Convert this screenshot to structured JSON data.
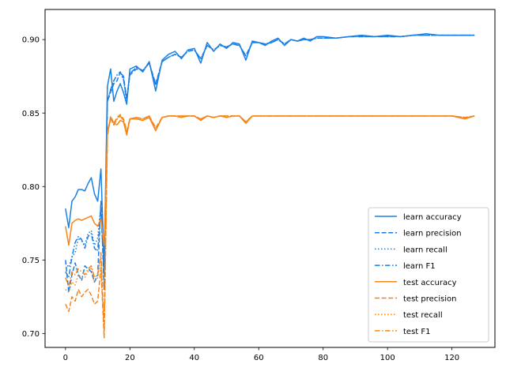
{
  "chart_data": {
    "type": "line",
    "title": "",
    "xlabel": "",
    "ylabel": "",
    "xlim": [
      -6.35,
      133.35
    ],
    "ylim": [
      0.6905,
      0.9205
    ],
    "grid": false,
    "legend_position": "lower-right",
    "xticks": [
      0,
      20,
      40,
      60,
      80,
      100,
      120
    ],
    "yticks": [
      0.7,
      0.75,
      0.8,
      0.85,
      0.9
    ],
    "ytick_labels": [
      "0.70",
      "0.75",
      "0.80",
      "0.85",
      "0.90"
    ],
    "colors": {
      "learn": "#1f77b4",
      "test": "#ff7f0e",
      "learn_bright": "#1a80e6",
      "test_bright": "#f5861a"
    },
    "x_anchors": [
      0,
      1,
      2,
      3,
      4,
      5,
      6,
      7,
      8,
      9,
      10,
      11,
      12,
      13,
      14,
      15,
      16,
      17,
      18,
      19,
      20,
      22,
      24,
      26,
      28,
      30,
      32,
      34,
      36,
      38,
      40,
      42,
      44,
      46,
      48,
      50,
      52,
      54,
      56,
      58,
      60,
      62,
      64,
      66,
      68,
      70,
      72,
      74,
      76,
      78,
      80,
      84,
      88,
      92,
      96,
      100,
      104,
      108,
      112,
      116,
      120,
      124,
      127
    ],
    "series": [
      {
        "name": "learn accuracy",
        "color": "#1a80e6",
        "dash": "solid",
        "values": [
          0.785,
          0.772,
          0.79,
          0.793,
          0.798,
          0.798,
          0.797,
          0.802,
          0.806,
          0.795,
          0.79,
          0.812,
          0.745,
          0.868,
          0.88,
          0.858,
          0.865,
          0.87,
          0.864,
          0.856,
          0.88,
          0.882,
          0.878,
          0.885,
          0.865,
          0.886,
          0.89,
          0.892,
          0.887,
          0.893,
          0.894,
          0.884,
          0.898,
          0.892,
          0.897,
          0.894,
          0.898,
          0.897,
          0.886,
          0.899,
          0.898,
          0.896,
          0.899,
          0.901,
          0.896,
          0.9,
          0.899,
          0.901,
          0.899,
          0.902,
          0.902,
          0.901,
          0.902,
          0.903,
          0.902,
          0.903,
          0.902,
          0.903,
          0.904,
          0.903,
          0.903,
          0.903,
          0.903
        ]
      },
      {
        "name": "learn precision",
        "color": "#1a80e6",
        "dash": "dashed",
        "values": [
          0.75,
          0.728,
          0.74,
          0.748,
          0.74,
          0.736,
          0.746,
          0.744,
          0.742,
          0.735,
          0.74,
          0.79,
          0.73,
          0.858,
          0.864,
          0.87,
          0.872,
          0.878,
          0.875,
          0.86,
          0.876,
          0.88,
          0.879,
          0.884,
          0.87,
          0.885,
          0.888,
          0.89,
          0.888,
          0.892,
          0.893,
          0.887,
          0.896,
          0.893,
          0.896,
          0.895,
          0.897,
          0.896,
          0.889,
          0.898,
          0.898,
          0.897,
          0.898,
          0.9,
          0.897,
          0.9,
          0.899,
          0.9,
          0.9,
          0.901,
          0.901,
          0.901,
          0.902,
          0.902,
          0.902,
          0.902,
          0.902,
          0.903,
          0.903,
          0.903,
          0.903,
          0.903,
          0.903
        ]
      },
      {
        "name": "learn recall",
        "color": "#1a80e6",
        "dash": "dotted",
        "values": [
          0.748,
          0.745,
          0.752,
          0.755,
          0.765,
          0.763,
          0.76,
          0.768,
          0.77,
          0.76,
          0.765,
          0.788,
          0.74,
          0.858,
          0.866,
          0.872,
          0.876,
          0.878,
          0.873,
          0.858,
          0.877,
          0.881,
          0.879,
          0.884,
          0.869,
          0.885,
          0.888,
          0.89,
          0.888,
          0.892,
          0.893,
          0.887,
          0.896,
          0.893,
          0.896,
          0.895,
          0.897,
          0.896,
          0.889,
          0.898,
          0.898,
          0.897,
          0.898,
          0.9,
          0.897,
          0.9,
          0.899,
          0.9,
          0.9,
          0.901,
          0.901,
          0.901,
          0.902,
          0.902,
          0.902,
          0.902,
          0.902,
          0.903,
          0.903,
          0.903,
          0.903,
          0.903,
          0.903
        ]
      },
      {
        "name": "learn F1",
        "color": "#1a80e6",
        "dash": "dashdot",
        "values": [
          0.742,
          0.738,
          0.752,
          0.762,
          0.766,
          0.764,
          0.758,
          0.766,
          0.768,
          0.758,
          0.756,
          0.786,
          0.738,
          0.858,
          0.866,
          0.872,
          0.876,
          0.878,
          0.873,
          0.858,
          0.877,
          0.881,
          0.879,
          0.884,
          0.869,
          0.885,
          0.888,
          0.89,
          0.888,
          0.892,
          0.893,
          0.887,
          0.896,
          0.893,
          0.896,
          0.895,
          0.897,
          0.896,
          0.889,
          0.898,
          0.898,
          0.897,
          0.898,
          0.9,
          0.897,
          0.9,
          0.899,
          0.9,
          0.9,
          0.901,
          0.901,
          0.901,
          0.902,
          0.902,
          0.902,
          0.902,
          0.902,
          0.903,
          0.903,
          0.903,
          0.903,
          0.903,
          0.903
        ]
      },
      {
        "name": "test accuracy",
        "color": "#f5861a",
        "dash": "solid",
        "values": [
          0.773,
          0.76,
          0.775,
          0.777,
          0.778,
          0.777,
          0.778,
          0.779,
          0.78,
          0.775,
          0.773,
          0.778,
          0.76,
          0.838,
          0.846,
          0.843,
          0.842,
          0.845,
          0.844,
          0.835,
          0.846,
          0.846,
          0.845,
          0.847,
          0.838,
          0.847,
          0.848,
          0.848,
          0.847,
          0.848,
          0.848,
          0.845,
          0.848,
          0.847,
          0.848,
          0.847,
          0.848,
          0.848,
          0.843,
          0.848,
          0.848,
          0.848,
          0.848,
          0.848,
          0.848,
          0.848,
          0.848,
          0.848,
          0.848,
          0.848,
          0.848,
          0.848,
          0.848,
          0.848,
          0.848,
          0.848,
          0.848,
          0.848,
          0.848,
          0.848,
          0.848,
          0.846,
          0.848
        ]
      },
      {
        "name": "test precision",
        "color": "#f5861a",
        "dash": "dashed",
        "values": [
          0.72,
          0.715,
          0.725,
          0.722,
          0.73,
          0.725,
          0.728,
          0.73,
          0.726,
          0.72,
          0.722,
          0.745,
          0.697,
          0.834,
          0.848,
          0.843,
          0.847,
          0.849,
          0.846,
          0.838,
          0.846,
          0.847,
          0.846,
          0.848,
          0.84,
          0.847,
          0.848,
          0.848,
          0.848,
          0.848,
          0.848,
          0.846,
          0.848,
          0.847,
          0.848,
          0.848,
          0.848,
          0.848,
          0.844,
          0.848,
          0.848,
          0.848,
          0.848,
          0.848,
          0.848,
          0.848,
          0.848,
          0.848,
          0.848,
          0.848,
          0.848,
          0.848,
          0.848,
          0.848,
          0.848,
          0.848,
          0.848,
          0.848,
          0.848,
          0.848,
          0.848,
          0.847,
          0.848
        ]
      },
      {
        "name": "test recall",
        "color": "#f5861a",
        "dash": "dotted",
        "values": [
          0.73,
          0.728,
          0.735,
          0.733,
          0.74,
          0.738,
          0.738,
          0.742,
          0.745,
          0.735,
          0.738,
          0.752,
          0.7,
          0.836,
          0.846,
          0.842,
          0.846,
          0.848,
          0.845,
          0.836,
          0.846,
          0.847,
          0.846,
          0.848,
          0.839,
          0.847,
          0.848,
          0.848,
          0.848,
          0.848,
          0.848,
          0.846,
          0.848,
          0.847,
          0.848,
          0.848,
          0.848,
          0.848,
          0.844,
          0.848,
          0.848,
          0.848,
          0.848,
          0.848,
          0.848,
          0.848,
          0.848,
          0.848,
          0.848,
          0.848,
          0.848,
          0.848,
          0.848,
          0.848,
          0.848,
          0.848,
          0.848,
          0.848,
          0.848,
          0.848,
          0.848,
          0.847,
          0.848
        ]
      },
      {
        "name": "test F1",
        "color": "#f5861a",
        "dash": "dashdot",
        "values": [
          0.738,
          0.732,
          0.742,
          0.74,
          0.744,
          0.742,
          0.74,
          0.744,
          0.746,
          0.738,
          0.74,
          0.755,
          0.702,
          0.836,
          0.846,
          0.842,
          0.846,
          0.848,
          0.845,
          0.836,
          0.846,
          0.847,
          0.846,
          0.848,
          0.839,
          0.847,
          0.848,
          0.848,
          0.848,
          0.848,
          0.848,
          0.846,
          0.848,
          0.847,
          0.848,
          0.848,
          0.848,
          0.848,
          0.844,
          0.848,
          0.848,
          0.848,
          0.848,
          0.848,
          0.848,
          0.848,
          0.848,
          0.848,
          0.848,
          0.848,
          0.848,
          0.848,
          0.848,
          0.848,
          0.848,
          0.848,
          0.848,
          0.848,
          0.848,
          0.848,
          0.848,
          0.847,
          0.848
        ]
      }
    ]
  }
}
